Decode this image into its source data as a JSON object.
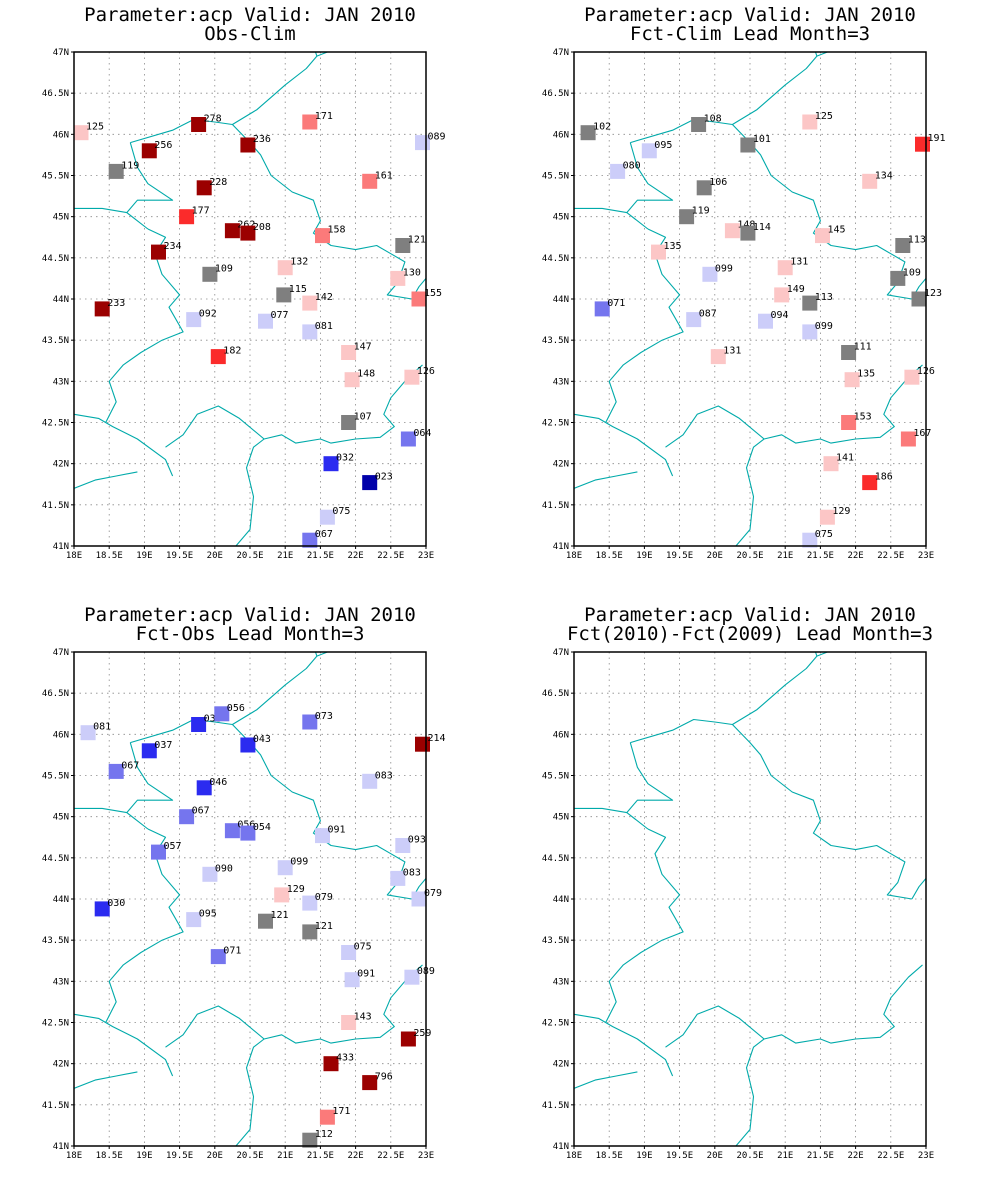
{
  "colors": {
    "border": "#00aaaa",
    "grey": "#7f7f7f",
    "blue_vlight": "#cccdf9",
    "blue_light": "#7575ee",
    "blue": "#2b2bf0",
    "blue_dark": "#0000aa",
    "red_vlight": "#fcc6c6",
    "red_light": "#fb7a7a",
    "red": "#fb2b2b",
    "red_dark": "#9b0000"
  },
  "map": {
    "projection": "latlon",
    "lon_range": [
      18,
      23
    ],
    "lat_range": [
      41,
      47
    ],
    "x_ticks": [
      "18E",
      "18.5E",
      "19E",
      "19.5E",
      "20E",
      "20.5E",
      "21E",
      "21.5E",
      "22E",
      "22.5E",
      "23E"
    ],
    "y_ticks": [
      "41N",
      "41.5N",
      "42N",
      "42.5N",
      "43N",
      "43.5N",
      "44N",
      "44.5N",
      "45N",
      "45.5N",
      "46N",
      "46.5N",
      "47N"
    ],
    "grid": "dotted"
  },
  "panels": [
    {
      "title1": "Parameter:acp Valid: JAN 2010",
      "title2": "Obs-Clim",
      "stations": [
        {
          "lon": 18.1,
          "lat": 46.02,
          "c": "red_vlight",
          "label": "125"
        },
        {
          "lon": 19.77,
          "lat": 46.12,
          "c": "red_dark",
          "label": "278"
        },
        {
          "lon": 21.35,
          "lat": 46.15,
          "c": "red_light",
          "label": "171"
        },
        {
          "lon": 22.95,
          "lat": 45.9,
          "c": "blue_vlight",
          "label": "089"
        },
        {
          "lon": 19.07,
          "lat": 45.8,
          "c": "red_dark",
          "label": "256"
        },
        {
          "lon": 20.47,
          "lat": 45.87,
          "c": "red_dark",
          "label": "236"
        },
        {
          "lon": 18.6,
          "lat": 45.55,
          "c": "grey",
          "label": "119"
        },
        {
          "lon": 19.85,
          "lat": 45.35,
          "c": "red_dark",
          "label": "228"
        },
        {
          "lon": 22.2,
          "lat": 45.43,
          "c": "red_light",
          "label": "161"
        },
        {
          "lon": 19.6,
          "lat": 45.0,
          "c": "red",
          "label": "177"
        },
        {
          "lon": 20.25,
          "lat": 44.83,
          "c": "red_dark",
          "label": "262"
        },
        {
          "lon": 20.47,
          "lat": 44.8,
          "c": "red_dark",
          "label": "208"
        },
        {
          "lon": 21.53,
          "lat": 44.77,
          "c": "red_light",
          "label": "158"
        },
        {
          "lon": 22.67,
          "lat": 44.65,
          "c": "grey",
          "label": "121"
        },
        {
          "lon": 19.2,
          "lat": 44.57,
          "c": "red_dark",
          "label": "234"
        },
        {
          "lon": 21.0,
          "lat": 44.38,
          "c": "red_vlight",
          "label": "132"
        },
        {
          "lon": 19.93,
          "lat": 44.3,
          "c": "grey",
          "label": "109"
        },
        {
          "lon": 22.6,
          "lat": 44.25,
          "c": "red_vlight",
          "label": "130"
        },
        {
          "lon": 20.98,
          "lat": 44.05,
          "c": "grey",
          "label": "115"
        },
        {
          "lon": 21.35,
          "lat": 43.95,
          "c": "red_vlight",
          "label": "142"
        },
        {
          "lon": 22.9,
          "lat": 44.0,
          "c": "red_light",
          "label": "155"
        },
        {
          "lon": 18.4,
          "lat": 43.88,
          "c": "red_dark",
          "label": "233"
        },
        {
          "lon": 19.7,
          "lat": 43.75,
          "c": "blue_vlight",
          "label": "092"
        },
        {
          "lon": 20.72,
          "lat": 43.73,
          "c": "blue_vlight",
          "label": "077"
        },
        {
          "lon": 21.35,
          "lat": 43.6,
          "c": "blue_vlight",
          "label": "081"
        },
        {
          "lon": 21.9,
          "lat": 43.35,
          "c": "red_vlight",
          "label": "147"
        },
        {
          "lon": 20.05,
          "lat": 43.3,
          "c": "red",
          "label": "182"
        },
        {
          "lon": 21.95,
          "lat": 43.02,
          "c": "red_vlight",
          "label": "148"
        },
        {
          "lon": 22.8,
          "lat": 43.05,
          "c": "red_vlight",
          "label": "126"
        },
        {
          "lon": 21.9,
          "lat": 42.5,
          "c": "grey",
          "label": "107"
        },
        {
          "lon": 22.75,
          "lat": 42.3,
          "c": "blue_light",
          "label": "064"
        },
        {
          "lon": 21.65,
          "lat": 42.0,
          "c": "blue",
          "label": "032"
        },
        {
          "lon": 22.2,
          "lat": 41.77,
          "c": "blue_dark",
          "label": "023"
        },
        {
          "lon": 21.6,
          "lat": 41.35,
          "c": "blue_vlight",
          "label": "075"
        },
        {
          "lon": 21.35,
          "lat": 41.07,
          "c": "blue_light",
          "label": "067"
        }
      ]
    },
    {
      "title1": "Parameter:acp Valid: JAN 2010",
      "title2": "Fct-Clim Lead Month=3",
      "stations": [
        {
          "lon": 18.2,
          "lat": 46.02,
          "c": "grey",
          "label": "102"
        },
        {
          "lon": 19.77,
          "lat": 46.12,
          "c": "grey",
          "label": "108"
        },
        {
          "lon": 21.35,
          "lat": 46.15,
          "c": "red_vlight",
          "label": "125"
        },
        {
          "lon": 22.95,
          "lat": 45.88,
          "c": "red",
          "label": "191"
        },
        {
          "lon": 19.07,
          "lat": 45.8,
          "c": "blue_vlight",
          "label": "095"
        },
        {
          "lon": 20.47,
          "lat": 45.87,
          "c": "grey",
          "label": "101"
        },
        {
          "lon": 18.62,
          "lat": 45.55,
          "c": "blue_vlight",
          "label": "080"
        },
        {
          "lon": 19.85,
          "lat": 45.35,
          "c": "grey",
          "label": "106"
        },
        {
          "lon": 22.2,
          "lat": 45.43,
          "c": "red_vlight",
          "label": "134"
        },
        {
          "lon": 19.6,
          "lat": 45.0,
          "c": "grey",
          "label": "119"
        },
        {
          "lon": 20.25,
          "lat": 44.83,
          "c": "red_vlight",
          "label": "148"
        },
        {
          "lon": 20.47,
          "lat": 44.8,
          "c": "grey",
          "label": "114"
        },
        {
          "lon": 21.53,
          "lat": 44.77,
          "c": "red_vlight",
          "label": "145"
        },
        {
          "lon": 22.67,
          "lat": 44.65,
          "c": "grey",
          "label": "113"
        },
        {
          "lon": 19.2,
          "lat": 44.57,
          "c": "red_vlight",
          "label": "135"
        },
        {
          "lon": 21.0,
          "lat": 44.38,
          "c": "red_vlight",
          "label": "131"
        },
        {
          "lon": 19.93,
          "lat": 44.3,
          "c": "blue_vlight",
          "label": "099"
        },
        {
          "lon": 22.6,
          "lat": 44.25,
          "c": "grey",
          "label": "109"
        },
        {
          "lon": 20.95,
          "lat": 44.05,
          "c": "red_vlight",
          "label": "149"
        },
        {
          "lon": 21.35,
          "lat": 43.95,
          "c": "grey",
          "label": "113"
        },
        {
          "lon": 22.9,
          "lat": 44.0,
          "c": "grey",
          "label": "123"
        },
        {
          "lon": 18.4,
          "lat": 43.88,
          "c": "blue_light",
          "label": "071"
        },
        {
          "lon": 19.7,
          "lat": 43.75,
          "c": "blue_vlight",
          "label": "087"
        },
        {
          "lon": 20.72,
          "lat": 43.73,
          "c": "blue_vlight",
          "label": "094"
        },
        {
          "lon": 21.35,
          "lat": 43.6,
          "c": "blue_vlight",
          "label": "099"
        },
        {
          "lon": 21.9,
          "lat": 43.35,
          "c": "grey",
          "label": "111"
        },
        {
          "lon": 20.05,
          "lat": 43.3,
          "c": "red_vlight",
          "label": "131"
        },
        {
          "lon": 21.95,
          "lat": 43.02,
          "c": "red_vlight",
          "label": "135"
        },
        {
          "lon": 22.8,
          "lat": 43.05,
          "c": "red_vlight",
          "label": "126"
        },
        {
          "lon": 21.9,
          "lat": 42.5,
          "c": "red_light",
          "label": "153"
        },
        {
          "lon": 22.75,
          "lat": 42.3,
          "c": "red_light",
          "label": "167"
        },
        {
          "lon": 21.65,
          "lat": 42.0,
          "c": "red_vlight",
          "label": "141"
        },
        {
          "lon": 22.2,
          "lat": 41.77,
          "c": "red",
          "label": "186"
        },
        {
          "lon": 21.6,
          "lat": 41.35,
          "c": "red_vlight",
          "label": "129"
        },
        {
          "lon": 21.35,
          "lat": 41.07,
          "c": "blue_vlight",
          "label": "075"
        }
      ]
    },
    {
      "title1": "Parameter:acp Valid: JAN 2010",
      "title2": "Fct-Obs Lead Month=3",
      "stations": [
        {
          "lon": 18.2,
          "lat": 46.02,
          "c": "blue_vlight",
          "label": "081"
        },
        {
          "lon": 19.77,
          "lat": 46.12,
          "c": "blue",
          "label": "038"
        },
        {
          "lon": 20.1,
          "lat": 46.25,
          "c": "blue_light",
          "label": "056"
        },
        {
          "lon": 21.35,
          "lat": 46.15,
          "c": "blue_light",
          "label": "073"
        },
        {
          "lon": 22.95,
          "lat": 45.88,
          "c": "red_dark",
          "label": "214"
        },
        {
          "lon": 19.07,
          "lat": 45.8,
          "c": "blue",
          "label": "037"
        },
        {
          "lon": 20.47,
          "lat": 45.87,
          "c": "blue",
          "label": "043"
        },
        {
          "lon": 18.6,
          "lat": 45.55,
          "c": "blue_light",
          "label": "067"
        },
        {
          "lon": 19.85,
          "lat": 45.35,
          "c": "blue",
          "label": "046"
        },
        {
          "lon": 22.2,
          "lat": 45.43,
          "c": "blue_vlight",
          "label": "083"
        },
        {
          "lon": 19.6,
          "lat": 45.0,
          "c": "blue_light",
          "label": "067"
        },
        {
          "lon": 20.25,
          "lat": 44.83,
          "c": "blue_light",
          "label": "056"
        },
        {
          "lon": 20.47,
          "lat": 44.8,
          "c": "blue_light",
          "label": "054"
        },
        {
          "lon": 21.53,
          "lat": 44.77,
          "c": "blue_vlight",
          "label": "091"
        },
        {
          "lon": 22.67,
          "lat": 44.65,
          "c": "blue_vlight",
          "label": "093"
        },
        {
          "lon": 19.2,
          "lat": 44.57,
          "c": "blue_light",
          "label": "057"
        },
        {
          "lon": 21.0,
          "lat": 44.38,
          "c": "blue_vlight",
          "label": "099"
        },
        {
          "lon": 19.93,
          "lat": 44.3,
          "c": "blue_vlight",
          "label": "090"
        },
        {
          "lon": 22.6,
          "lat": 44.25,
          "c": "blue_vlight",
          "label": "083"
        },
        {
          "lon": 20.95,
          "lat": 44.05,
          "c": "red_vlight",
          "label": "129"
        },
        {
          "lon": 21.35,
          "lat": 43.95,
          "c": "blue_vlight",
          "label": "079"
        },
        {
          "lon": 22.9,
          "lat": 44.0,
          "c": "blue_vlight",
          "label": "079"
        },
        {
          "lon": 18.4,
          "lat": 43.88,
          "c": "blue",
          "label": "030"
        },
        {
          "lon": 19.7,
          "lat": 43.75,
          "c": "blue_vlight",
          "label": "095"
        },
        {
          "lon": 20.72,
          "lat": 43.73,
          "c": "grey",
          "label": "121"
        },
        {
          "lon": 21.35,
          "lat": 43.6,
          "c": "grey",
          "label": "121"
        },
        {
          "lon": 21.9,
          "lat": 43.35,
          "c": "blue_vlight",
          "label": "075"
        },
        {
          "lon": 20.05,
          "lat": 43.3,
          "c": "blue_light",
          "label": "071"
        },
        {
          "lon": 21.95,
          "lat": 43.02,
          "c": "blue_vlight",
          "label": "091"
        },
        {
          "lon": 22.8,
          "lat": 43.05,
          "c": "blue_vlight",
          "label": "089"
        },
        {
          "lon": 21.9,
          "lat": 42.5,
          "c": "red_vlight",
          "label": "143"
        },
        {
          "lon": 22.75,
          "lat": 42.3,
          "c": "red_dark",
          "label": "259"
        },
        {
          "lon": 21.65,
          "lat": 42.0,
          "c": "red_dark",
          "label": "433"
        },
        {
          "lon": 22.2,
          "lat": 41.77,
          "c": "red_dark",
          "label": "796"
        },
        {
          "lon": 21.6,
          "lat": 41.35,
          "c": "red_light",
          "label": "171"
        },
        {
          "lon": 21.35,
          "lat": 41.07,
          "c": "grey",
          "label": "112"
        }
      ]
    },
    {
      "title1": "Parameter:acp Valid: JAN 2010",
      "title2": "Fct(2010)-Fct(2009) Lead Month=3",
      "stations": []
    }
  ]
}
